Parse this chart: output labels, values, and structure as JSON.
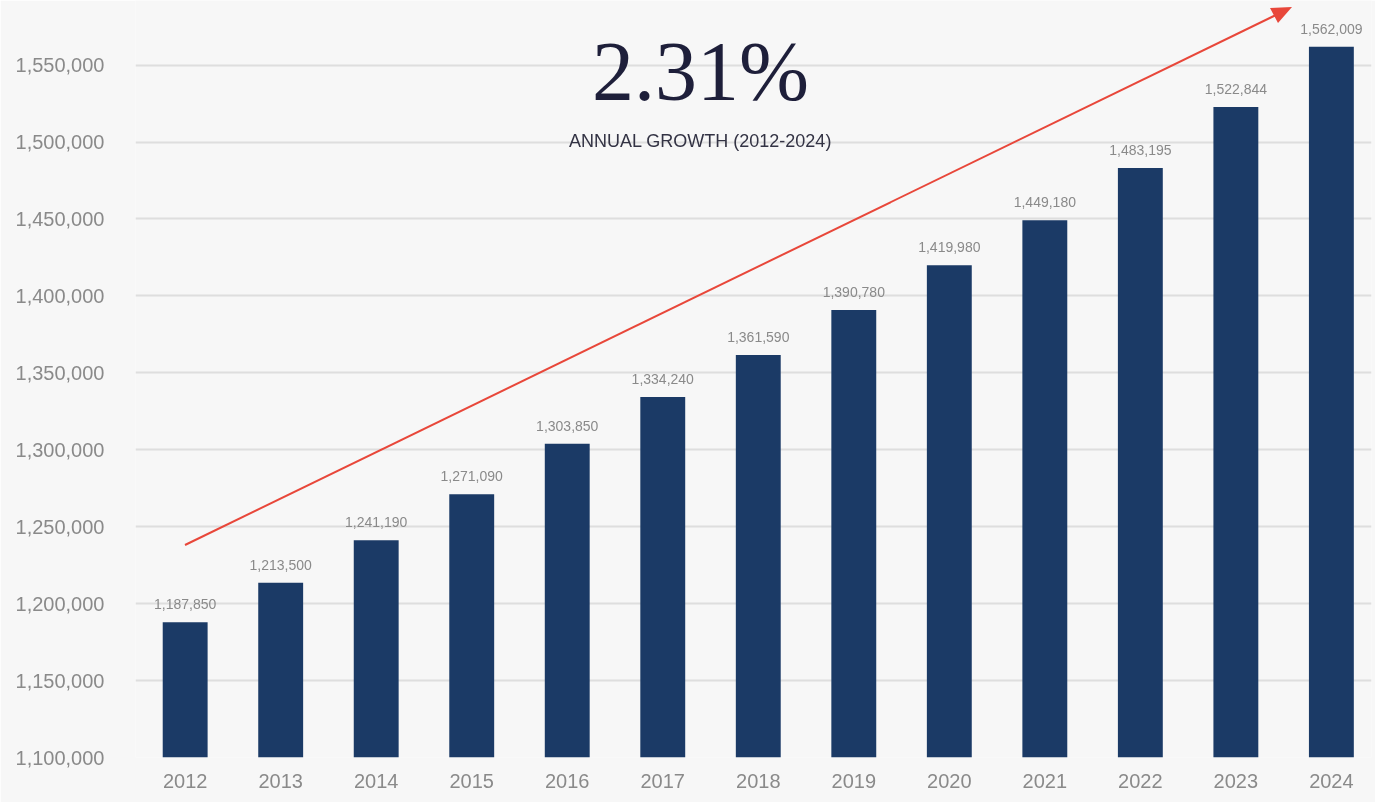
{
  "chart_data": {
    "type": "bar",
    "categories": [
      "2012",
      "2013",
      "2014",
      "2015",
      "2016",
      "2017",
      "2018",
      "2019",
      "2020",
      "2021",
      "2022",
      "2023",
      "2024"
    ],
    "values": [
      1187850,
      1213500,
      1241190,
      1271090,
      1303850,
      1334240,
      1361590,
      1390780,
      1419980,
      1449180,
      1483195,
      1522844,
      1562009
    ],
    "color": "#1b3a66",
    "ylim": [
      1100000,
      1592000
    ],
    "yticks": [
      {
        "value": 1100000,
        "label": "1,100,000"
      },
      {
        "value": 1150000,
        "label": "1,150,000"
      },
      {
        "value": 1200000,
        "label": "1,200,000"
      },
      {
        "value": 1250000,
        "label": "1,250,000"
      },
      {
        "value": 1300000,
        "label": "1,300,000"
      },
      {
        "value": 1350000,
        "label": "1,350,000"
      },
      {
        "value": 1400000,
        "label": "1,400,000"
      },
      {
        "value": 1450000,
        "label": "1,450,000"
      },
      {
        "value": 1500000,
        "label": "1,500,000"
      },
      {
        "value": 1550000,
        "label": "1,550,000"
      }
    ],
    "grid": "y",
    "value_labels": [
      "1,187,850",
      "1,213,500",
      "1,241,190",
      "1,271,090",
      "1,303,850",
      "1,334,240",
      "1,361,590",
      "1,390,780",
      "1,419,980",
      "1,449,180",
      "1,483,195",
      "1,522,844",
      "1,562,009"
    ],
    "annotations": [
      "2.31%",
      "ANNUAL GROWTH (2012-2024)"
    ]
  }
}
